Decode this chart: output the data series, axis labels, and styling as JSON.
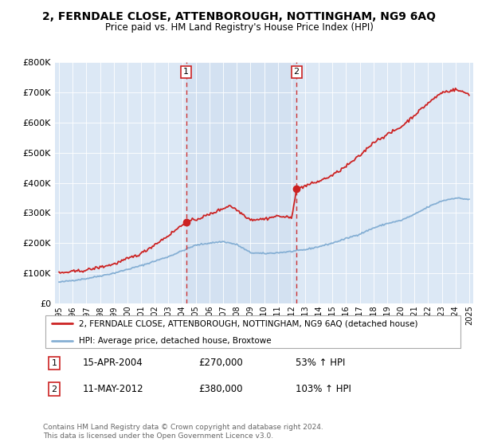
{
  "title": "2, FERNDALE CLOSE, ATTENBOROUGH, NOTTINGHAM, NG9 6AQ",
  "subtitle": "Price paid vs. HM Land Registry's House Price Index (HPI)",
  "red_label": "2, FERNDALE CLOSE, ATTENBOROUGH, NOTTINGHAM, NG9 6AQ (detached house)",
  "blue_label": "HPI: Average price, detached house, Broxtowe",
  "sale1_date": "15-APR-2004",
  "sale1_price": 270000,
  "sale1_pct": "53%",
  "sale2_date": "11-MAY-2012",
  "sale2_price": 380000,
  "sale2_pct": "103%",
  "footer": "Contains HM Land Registry data © Crown copyright and database right 2024.\nThis data is licensed under the Open Government Licence v3.0.",
  "ylim": [
    0,
    800000
  ],
  "xlim_start": 1994.7,
  "xlim_end": 2025.3,
  "plot_bg": "#dce8f5",
  "highlight_bg": "#cddff0",
  "sale1_x": 2004.29,
  "sale2_x": 2012.37
}
